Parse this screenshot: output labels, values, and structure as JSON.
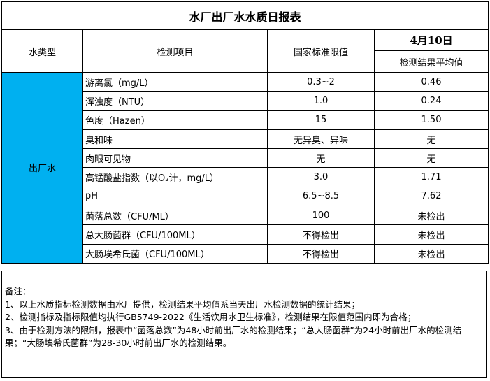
{
  "title": "水厂出厂水水质日报表",
  "headers": {
    "water_type": "水类型",
    "item": "检测项目",
    "standard": "国家标准限值",
    "date": "4月10日",
    "average": "检测结果平均值"
  },
  "water_type": "出厂水",
  "colors": {
    "water_type_bg": "#00b0f0"
  },
  "rows": [
    {
      "item": "游离氯（mg/L）",
      "standard": "0.3~2",
      "value": "0.46"
    },
    {
      "item": "浑浊度（NTU）",
      "standard": "1.0",
      "value": "0.24"
    },
    {
      "item": "色度（Hazen）",
      "standard": "15",
      "value": "1.50"
    },
    {
      "item": "臭和味",
      "standard": "无异臭、异味",
      "value": "无"
    },
    {
      "item": "肉眼可见物",
      "standard": "无",
      "value": "无"
    },
    {
      "item": "高锰酸盐指数（以O₂计，mg/L）",
      "standard": "3.0",
      "value": "1.71"
    },
    {
      "item": "pH",
      "standard": "6.5~8.5",
      "value": "7.62"
    },
    {
      "item": "菌落总数（CFU/ML）",
      "standard": "100",
      "value": "未检出"
    },
    {
      "item": "总大肠菌群（CFU/100ML）",
      "standard": "不得检出",
      "value": "未检出"
    },
    {
      "item": "大肠埃希氏菌（CFU/100ML）",
      "standard": "不得检出",
      "value": "未检出"
    }
  ],
  "notes": {
    "heading": "备注：",
    "lines": [
      "1、以上水质指标检测数据由水厂提供，检测结果平均值系当天出厂水检测数据的统计结果；",
      "2、检测指标及指标限值均执行GB5749-2022《生活饮用水卫生标准》，检测结果在限值范围内即为合格；",
      "3、由于检测方法的限制，报表中“菌落总数”为48小时前出厂水的检测结果；“总大肠菌群”为24小时前出厂水的检测结果；“大肠埃希氏菌群”为28-30小时前出厂水的检测结果。"
    ]
  }
}
